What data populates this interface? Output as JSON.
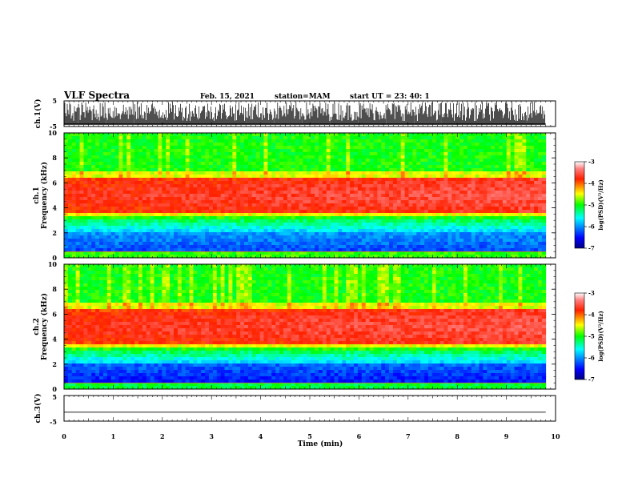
{
  "header": {
    "title": "VLF Spectra",
    "date": "Feb. 15, 2021",
    "station": "station=MAM",
    "start": "start UT =   23: 40: 1"
  },
  "chart_data": [
    {
      "type": "line",
      "panel": "ch1-waveform",
      "ylabel": "ch.1(V)",
      "ylim": [
        -5,
        5
      ],
      "yticks": [
        "5",
        "-5"
      ],
      "xlim": [
        0,
        10
      ],
      "description_of_trace": "dense impulsive waveform"
    },
    {
      "type": "heatmap",
      "panel": "ch1-spectrogram",
      "ylabel_line1": "ch.1",
      "ylabel_line2": "Frequency (kHz)",
      "ylim": [
        0,
        10
      ],
      "yticks": [
        "0",
        "2",
        "4",
        "6",
        "8",
        "10"
      ],
      "xlim": [
        0,
        9.8
      ],
      "colorbar": {
        "label": "log(PSD)(V²/Hz)",
        "range": [
          -7,
          -3
        ],
        "ticks": [
          "-3",
          "-4",
          "-5",
          "-6",
          "-7"
        ]
      }
    },
    {
      "type": "heatmap",
      "panel": "ch2-spectrogram",
      "ylabel_line1": "ch.2",
      "ylabel_line2": "Frequency (kHz)",
      "ylim": [
        0,
        10
      ],
      "yticks": [
        "0",
        "2",
        "4",
        "6",
        "8",
        "10"
      ],
      "xlim": [
        0,
        9.8
      ],
      "colorbar": {
        "label": "log(PSD)(V²/Hz)",
        "range": [
          -7,
          -3
        ],
        "ticks": [
          "-3",
          "-4",
          "-5",
          "-6",
          "-7"
        ]
      }
    },
    {
      "type": "line",
      "panel": "ch3-waveform",
      "ylabel": "ch.3(V)",
      "ylim": [
        -5,
        5
      ],
      "yticks": [
        "5",
        "-5"
      ],
      "x": [
        0,
        9.8
      ],
      "y": [
        -1.5,
        -1.5
      ]
    }
  ],
  "xaxis": {
    "label": "Time (min)",
    "ticks": [
      "0",
      "1",
      "2",
      "3",
      "4",
      "5",
      "6",
      "7",
      "8",
      "9",
      "10"
    ],
    "range": [
      0,
      10
    ]
  },
  "colors": {
    "jet_low": "#00007f",
    "jet_mid": "#00ff00",
    "jet_high": "#ff2000",
    "jet_top": "#ffffff"
  }
}
